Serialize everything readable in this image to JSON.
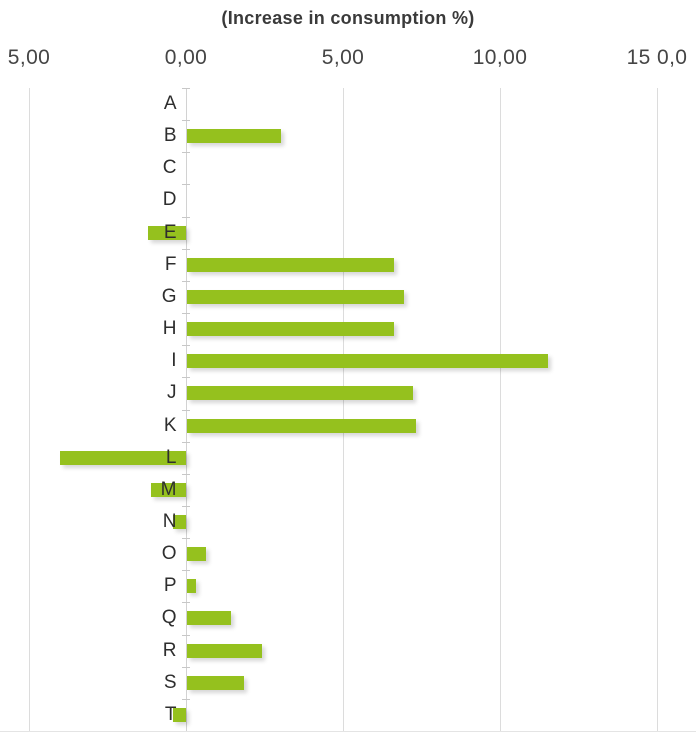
{
  "chart_data": {
    "type": "bar",
    "orientation": "horizontal",
    "title": "(Increase in consumption %)",
    "categories": [
      "A",
      "B",
      "C",
      "D",
      "E",
      "F",
      "G",
      "H",
      "I",
      "J",
      "K",
      "L",
      "M",
      "N",
      "O",
      "P",
      "Q",
      "R",
      "S",
      "T"
    ],
    "values": [
      0,
      3.0,
      0,
      0,
      -1.2,
      6.6,
      6.9,
      6.6,
      11.5,
      7.2,
      7.3,
      -4.0,
      -1.1,
      -0.4,
      0.6,
      0.3,
      1.4,
      2.4,
      1.8,
      -0.4
    ],
    "x_ticks": [
      {
        "value": -5,
        "label": "5,00"
      },
      {
        "value": 0,
        "label": "0,00"
      },
      {
        "value": 5,
        "label": "5,00"
      },
      {
        "value": 10,
        "label": "10,00"
      },
      {
        "value": 15,
        "label": "15 0,0"
      }
    ],
    "xlim": [
      -5.9,
      16.2
    ],
    "xlabel": "",
    "ylabel": "",
    "grid": true,
    "legend": false,
    "bar_color": "#95c11e",
    "grid_color": "#dcdcdc",
    "text_color": "#3a3a3a"
  }
}
